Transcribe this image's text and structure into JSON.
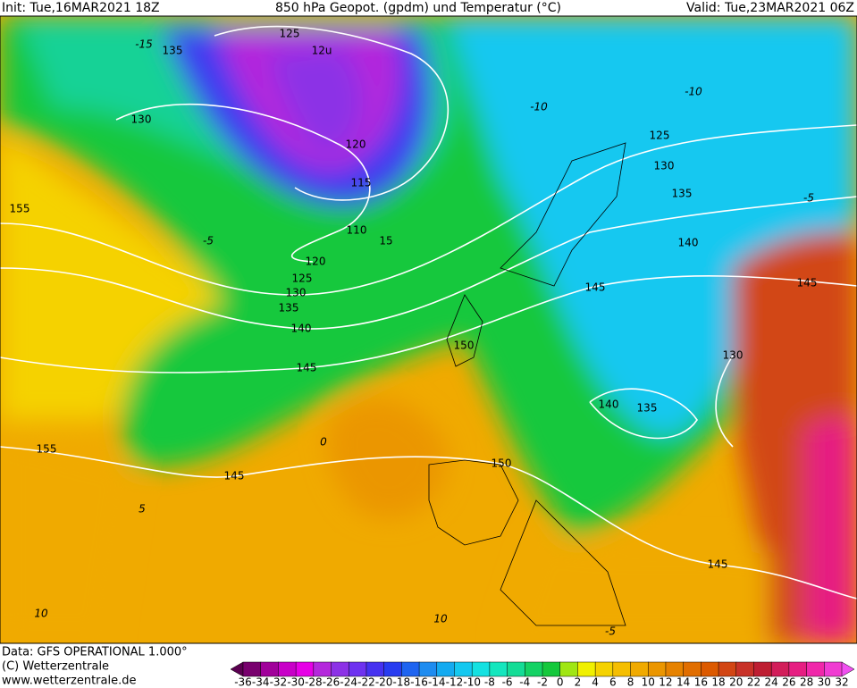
{
  "header": {
    "init": "Init: Tue,16MAR2021 18Z",
    "title": "850 hPa Geopot. (gpdm) und Temperatur (°C)",
    "valid": "Valid: Tue,23MAR2021 06Z"
  },
  "map": {
    "contour_labels": [
      "135",
      "125",
      "12u",
      "130",
      "120",
      "115",
      "110",
      "15",
      "120",
      "125",
      "130",
      "135",
      "140",
      "145",
      "150",
      "155",
      "155",
      "145",
      "150",
      "140",
      "135",
      "130",
      "145",
      "145",
      "125",
      "130",
      "135",
      "140",
      "145"
    ],
    "temperature_labels": [
      "-15",
      "-10",
      "-10",
      "-5",
      "-5",
      "0",
      "5",
      "10",
      "10",
      "-5"
    ]
  },
  "footer": {
    "data": "Data: GFS OPERATIONAL 1.000°",
    "copyright": "(C) Wetterzentrale",
    "url": "www.wetterzentrale.de"
  },
  "colorbar": {
    "ticks": [
      -36,
      -34,
      -32,
      -30,
      -28,
      -26,
      -24,
      -22,
      -20,
      -18,
      -16,
      -14,
      -12,
      -10,
      -8,
      -6,
      -4,
      -2,
      0,
      2,
      4,
      6,
      8,
      10,
      12,
      14,
      16,
      18,
      20,
      22,
      24,
      26,
      28,
      30,
      32
    ],
    "colors": [
      "#5a0050",
      "#78006e",
      "#a0009a",
      "#c800c8",
      "#e600e6",
      "#b428dc",
      "#8c32e6",
      "#6e32f0",
      "#4632f0",
      "#283cf0",
      "#1e64f0",
      "#1e8cf0",
      "#14aaf0",
      "#14c8f0",
      "#14e1e1",
      "#14e6be",
      "#14dc96",
      "#14d264",
      "#14c83c",
      "#a0e614",
      "#f0f000",
      "#f5d200",
      "#f5be00",
      "#f0aa00",
      "#eb9600",
      "#e68200",
      "#e16e00",
      "#dc5a00",
      "#d24614",
      "#c83228",
      "#be1e32",
      "#d21e5a",
      "#e61e82",
      "#f028aa",
      "#f03cd2",
      "#f050f0"
    ]
  }
}
